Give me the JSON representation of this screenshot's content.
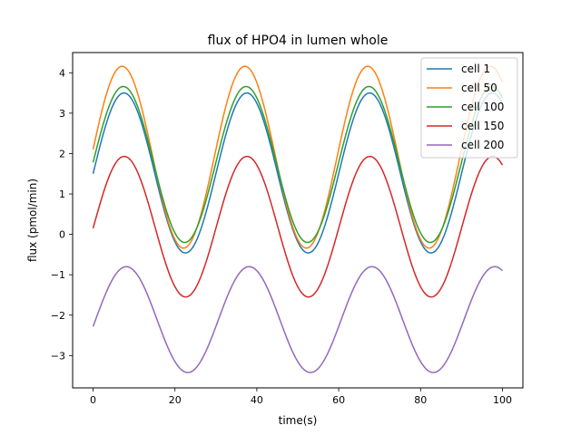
{
  "chart_data": {
    "type": "line",
    "title": "flux of HPO4 in lumen whole",
    "xlabel": "time(s)",
    "ylabel": "flux (pmol/min)",
    "xlim": [
      -5,
      105
    ],
    "ylim": [
      -3.8,
      4.5
    ],
    "xticks": [
      0,
      20,
      40,
      60,
      80,
      100
    ],
    "yticks": [
      -3,
      -2,
      -1,
      0,
      1,
      2,
      3,
      4
    ],
    "grid": false,
    "legend_position": "top-right",
    "x_range": [
      0,
      100
    ],
    "series": [
      {
        "name": "cell 1",
        "color": "#1f77b4",
        "mean": 1.52,
        "amplitude": 1.98,
        "period": 30,
        "start": 1.5
      },
      {
        "name": "cell 50",
        "color": "#ff7f0e",
        "mean": 1.91,
        "amplitude": 2.25,
        "period": 30,
        "start": 2.1
      },
      {
        "name": "cell 100",
        "color": "#2ca02c",
        "mean": 1.73,
        "amplitude": 1.93,
        "period": 30,
        "start": 1.78
      },
      {
        "name": "cell 150",
        "color": "#d62728",
        "mean": 0.19,
        "amplitude": 1.74,
        "period": 30,
        "start": 0.15
      },
      {
        "name": "cell 200",
        "color": "#9467bd",
        "mean": -2.11,
        "amplitude": 1.31,
        "period": 30,
        "start": -2.28
      }
    ]
  }
}
